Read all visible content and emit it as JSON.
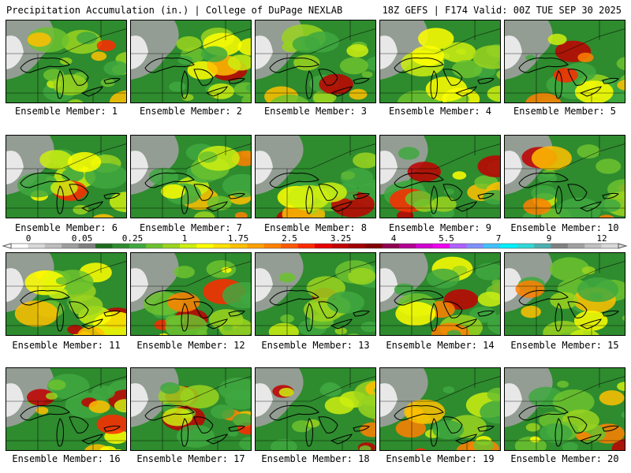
{
  "header": {
    "left": "Precipitation Accumulation (in.) | College of DuPage NEXLAB",
    "right": "18Z GEFS | F174 Valid: 00Z TUE SEP 30 2025"
  },
  "members": [
    "Ensemble Member: 1",
    "Ensemble Member: 2",
    "Ensemble Member: 3",
    "Ensemble Member: 4",
    "Ensemble Member: 5",
    "Ensemble Member: 6",
    "Ensemble Member: 7",
    "Ensemble Member: 8",
    "Ensemble Member: 9",
    "Ensemble Member: 10",
    "Ensemble Member: 11",
    "Ensemble Member: 12",
    "Ensemble Member: 13",
    "Ensemble Member: 14",
    "Ensemble Member: 15",
    "Ensemble Member: 16",
    "Ensemble Member: 17",
    "Ensemble Member: 18",
    "Ensemble Member: 19",
    "Ensemble Member: 20"
  ],
  "colorbar": {
    "labels": [
      "0",
      "0.05",
      "0.25",
      "1",
      "1.75",
      "2.5",
      "3.25",
      "4",
      "5.5",
      "7",
      "9",
      "12"
    ],
    "colors": [
      "#ffffff",
      "#d9d9d9",
      "#bdbdbd",
      "#9e9e9e",
      "#7f7f7f",
      "#1e6b1e",
      "#2e8b2e",
      "#3fa83f",
      "#6cc22e",
      "#9ad41e",
      "#ccee11",
      "#ffff00",
      "#ffe000",
      "#ffc000",
      "#ffa000",
      "#ff8000",
      "#ff5a00",
      "#ff2a00",
      "#e60000",
      "#c00000",
      "#a00000",
      "#800000",
      "#900050",
      "#b00090",
      "#d000d0",
      "#ee00ee",
      "#b060ff",
      "#7f8fff",
      "#40c0ff",
      "#00f0ff",
      "#30d8d8",
      "#4cb0b0",
      "#808080",
      "#a0a0a0",
      "#c0c0c0",
      "#d8d8d8"
    ]
  }
}
